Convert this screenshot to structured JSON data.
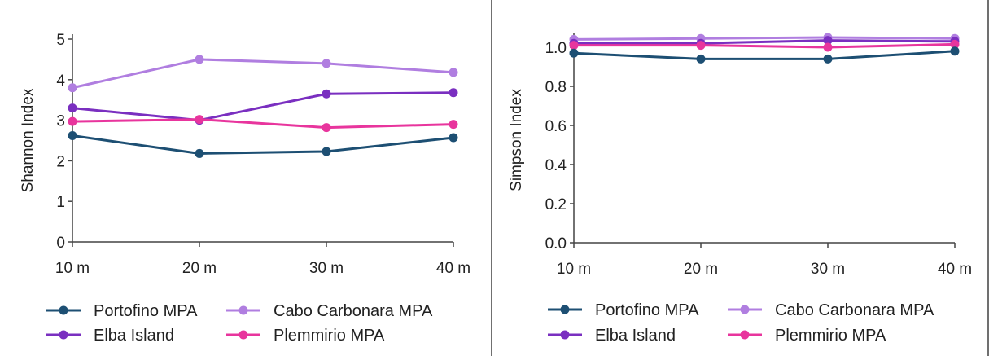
{
  "colors": {
    "Portofino MPA": "#1d4f73",
    "Cabo Carbonara MPA": "#b07ee0",
    "Elba Island": "#7a2fc0",
    "Plemmirio MPA": "#e8359d",
    "axis": "#444444",
    "separator": "#707070"
  },
  "legend": {
    "items": [
      "Portofino MPA",
      "Cabo Carbonara MPA",
      "Elba Island",
      "Plemmirio MPA"
    ]
  },
  "chart_data": [
    {
      "type": "line",
      "ylabel": "Shannon Index",
      "categories": [
        "10 m",
        "20 m",
        "30 m",
        "40 m"
      ],
      "ylim": [
        0,
        5
      ],
      "yticks": [
        "0",
        "1",
        "2",
        "3",
        "4",
        "5"
      ],
      "series": [
        {
          "name": "Cabo Carbonara MPA",
          "values": [
            3.8,
            4.5,
            4.4,
            4.18
          ]
        },
        {
          "name": "Elba Island",
          "values": [
            3.3,
            3.0,
            3.65,
            3.68
          ]
        },
        {
          "name": "Plemmirio MPA",
          "values": [
            2.97,
            3.02,
            2.82,
            2.9
          ]
        },
        {
          "name": "Portofino MPA",
          "values": [
            2.62,
            2.18,
            2.23,
            2.57
          ]
        }
      ],
      "legend_position": "bottom",
      "grid": false
    },
    {
      "type": "line",
      "ylabel": "Simpson Index",
      "categories": [
        "10 m",
        "20 m",
        "30 m",
        "40 m"
      ],
      "ylim": [
        0,
        1.05
      ],
      "yticks": [
        "0.0",
        "0.2",
        "0.4",
        "0.6",
        "0.8",
        "1.0"
      ],
      "series": [
        {
          "name": "Cabo Carbonara MPA",
          "values": [
            1.04,
            1.045,
            1.05,
            1.045
          ]
        },
        {
          "name": "Elba Island",
          "values": [
            1.02,
            1.02,
            1.035,
            1.03
          ]
        },
        {
          "name": "Plemmirio MPA",
          "values": [
            1.01,
            1.01,
            1.0,
            1.015
          ]
        },
        {
          "name": "Portofino MPA",
          "values": [
            0.97,
            0.94,
            0.94,
            0.98
          ]
        }
      ],
      "legend_position": "bottom",
      "grid": false
    }
  ]
}
